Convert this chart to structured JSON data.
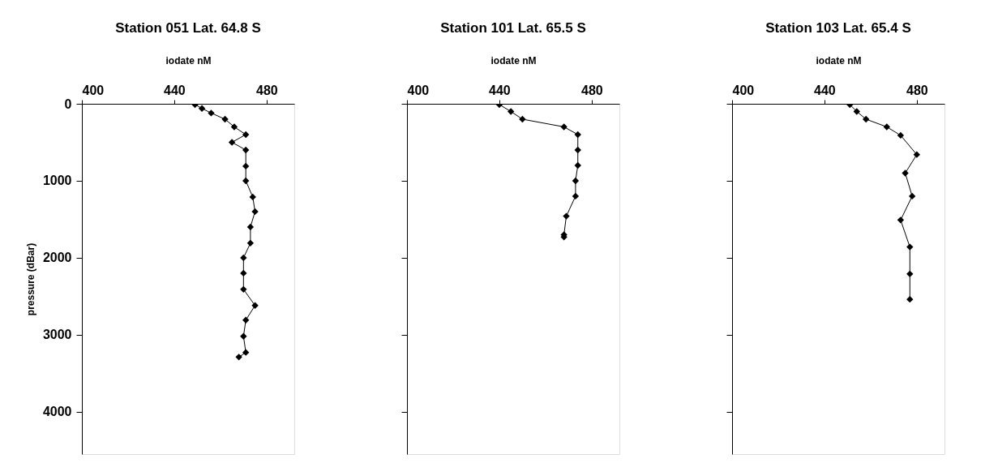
{
  "chart_data": [
    {
      "type": "line",
      "title": "Station 051 Lat. 64.8 S",
      "xlabel": "iodate nM",
      "ylabel": "pressure (dBar)",
      "xlim": [
        400,
        492
      ],
      "xticks": [
        400,
        440,
        480
      ],
      "ylim": [
        4550,
        0
      ],
      "yticks": [
        0,
        1000,
        2000,
        3000,
        4000
      ],
      "grid": false,
      "marker": "diamond",
      "line_style": "solid",
      "series": [
        {
          "color": "#000000",
          "x": [
            449,
            452,
            456,
            462,
            466,
            471,
            465,
            471,
            471,
            471,
            474,
            475,
            473,
            473,
            470,
            470,
            470,
            475,
            471,
            470,
            471,
            468
          ],
          "values": [
            10,
            60,
            120,
            200,
            300,
            400,
            500,
            600,
            810,
            1000,
            1210,
            1400,
            1600,
            1810,
            2000,
            2200,
            2410,
            2620,
            2810,
            3020,
            3230,
            3290
          ]
        }
      ]
    },
    {
      "type": "line",
      "title": "Station 101 Lat. 65.5 S",
      "xlabel": "iodate nM",
      "xlim": [
        400,
        492
      ],
      "xticks": [
        400,
        440,
        480
      ],
      "ylim": [
        4550,
        0
      ],
      "yticks": [
        0,
        1000,
        2000,
        3000,
        4000
      ],
      "tick_labels": "x",
      "grid": false,
      "marker": "diamond",
      "line_style": "solid",
      "series": [
        {
          "color": "#000000",
          "x": [
            440,
            445,
            450,
            468,
            474,
            474,
            474,
            473,
            473,
            469,
            468,
            468
          ],
          "values": [
            10,
            100,
            200,
            300,
            400,
            600,
            800,
            1000,
            1200,
            1460,
            1700,
            1730
          ]
        }
      ]
    },
    {
      "type": "line",
      "title": "Station 103 Lat. 65.4 S",
      "xlabel": "iodate nM",
      "xlim": [
        400,
        492
      ],
      "xticks": [
        400,
        440,
        480
      ],
      "ylim": [
        4550,
        0
      ],
      "yticks": [
        0,
        1000,
        2000,
        3000,
        4000
      ],
      "tick_labels": "x",
      "grid": false,
      "marker": "diamond",
      "line_style": "solid",
      "series": [
        {
          "color": "#000000",
          "x": [
            451,
            454,
            458,
            467,
            473,
            480,
            475,
            478,
            473,
            477,
            477,
            477
          ],
          "values": [
            10,
            100,
            200,
            300,
            410,
            660,
            900,
            1200,
            1510,
            1860,
            2210,
            2540
          ]
        }
      ]
    }
  ]
}
